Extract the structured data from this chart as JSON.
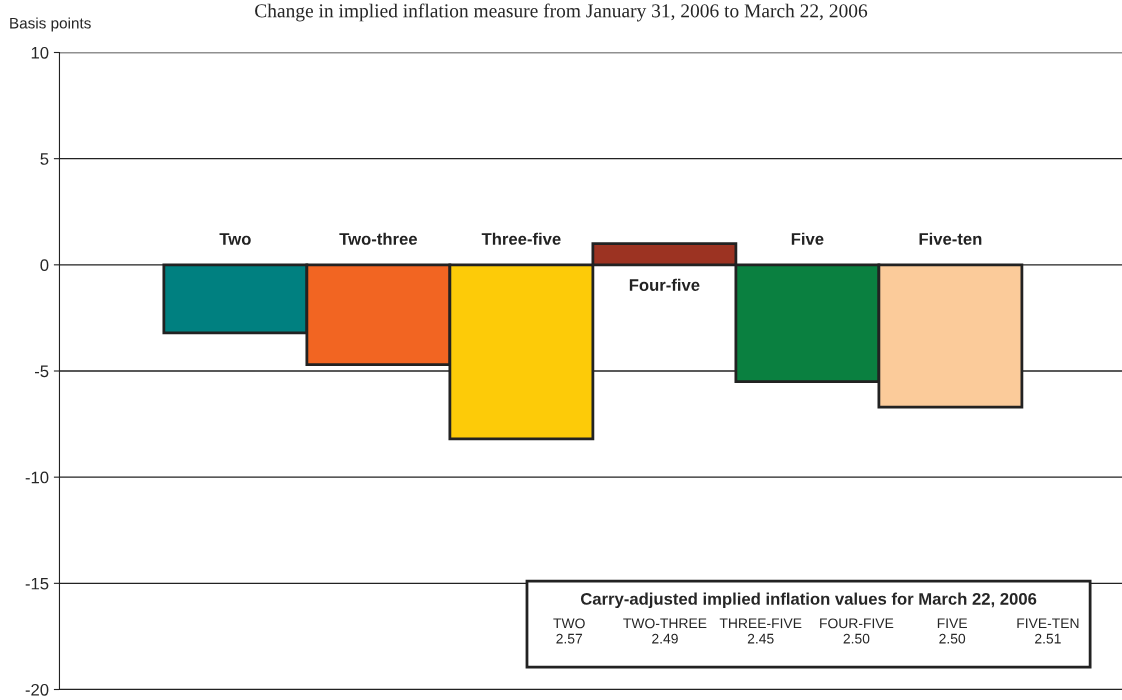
{
  "chart_data": {
    "type": "bar",
    "title": "Change in implied inflation measure from January 31, 2006 to March 22, 2006",
    "ylabel": "Basis points",
    "categories": [
      "Two",
      "Two-three",
      "Three-five",
      "Four-five",
      "Five",
      "Five-ten"
    ],
    "values": [
      -3.2,
      -4.7,
      -8.2,
      1.0,
      -5.5,
      -6.7
    ],
    "colors": [
      "#008080",
      "#f26522",
      "#fdcb08",
      "#9c3322",
      "#0a8040",
      "#fbcb9a"
    ],
    "ylim": [
      -20,
      10
    ],
    "yticks": [
      -20,
      -15,
      -10,
      -5,
      0,
      5,
      10
    ],
    "grid": "y",
    "tick_labels": "y",
    "annotations": [
      "Carry-adjusted implied inflation values for March 22, 2006",
      "TWO",
      "2.57",
      "TWO-THREE",
      "2.49",
      "THREE-FIVE",
      "2.45",
      "FOUR-FIVE",
      "2.50",
      "FIVE",
      "2.50",
      "FIVE-TEN",
      "2.51"
    ]
  }
}
